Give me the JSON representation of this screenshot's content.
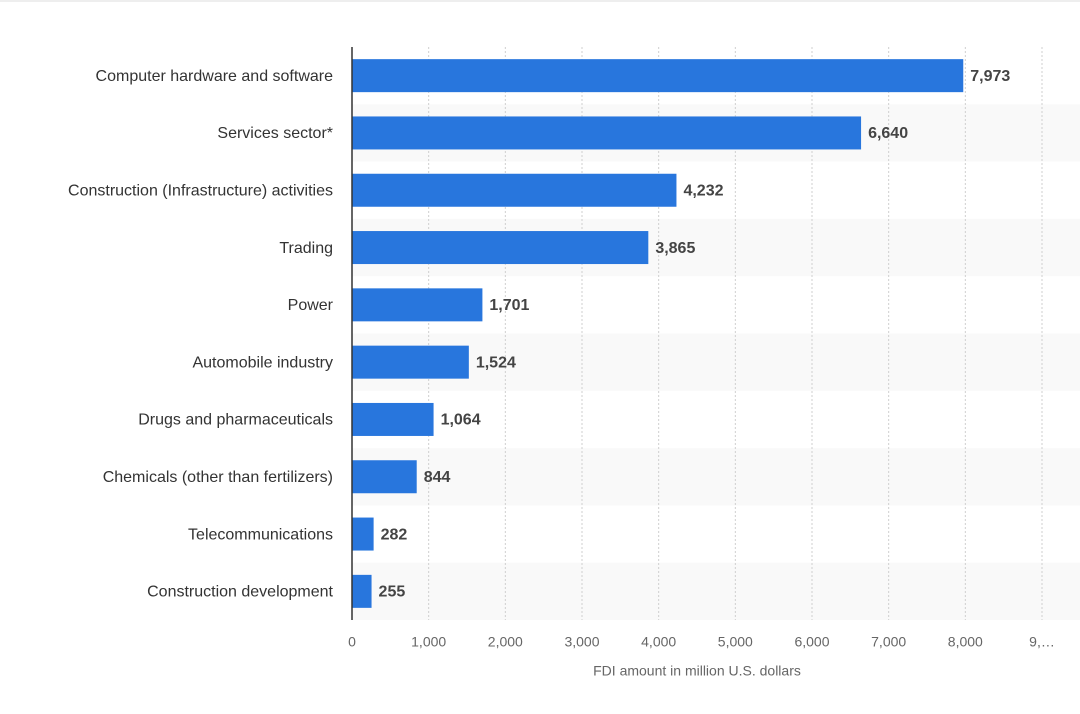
{
  "chart_data": {
    "type": "bar",
    "orientation": "horizontal",
    "x_label": "FDI amount in million U.S. dollars",
    "categories": [
      "Computer hardware and software",
      "Services sector*",
      "Construction (Infrastructure) activities",
      "Trading",
      "Power",
      "Automobile industry",
      "Drugs and pharmaceuticals",
      "Chemicals (other than fertilizers)",
      "Telecommunications",
      "Construction development"
    ],
    "values": [
      7973,
      6640,
      4232,
      3865,
      1701,
      1524,
      1064,
      844,
      282,
      255
    ],
    "value_labels": [
      "7,973",
      "6,640",
      "4,232",
      "3,865",
      "1,701",
      "1,524",
      "1,064",
      "844",
      "282",
      "255"
    ],
    "color": "#2876dd",
    "xlim": [
      0,
      9000
    ],
    "xticks": [
      0,
      {
        "value": 1000,
        "label": "1,000"
      },
      {
        "value": 2000,
        "label": "2,000"
      },
      {
        "value": 3000,
        "label": "3,000"
      },
      {
        "value": 4000,
        "label": "4,000"
      },
      {
        "value": 5000,
        "label": "5,000"
      },
      {
        "value": 6000,
        "label": "6,000"
      },
      {
        "value": 7000,
        "label": "7,000"
      },
      {
        "value": 8000,
        "label": "8,000"
      },
      {
        "value": 9000,
        "label": "9,…"
      }
    ],
    "grid": true
  }
}
